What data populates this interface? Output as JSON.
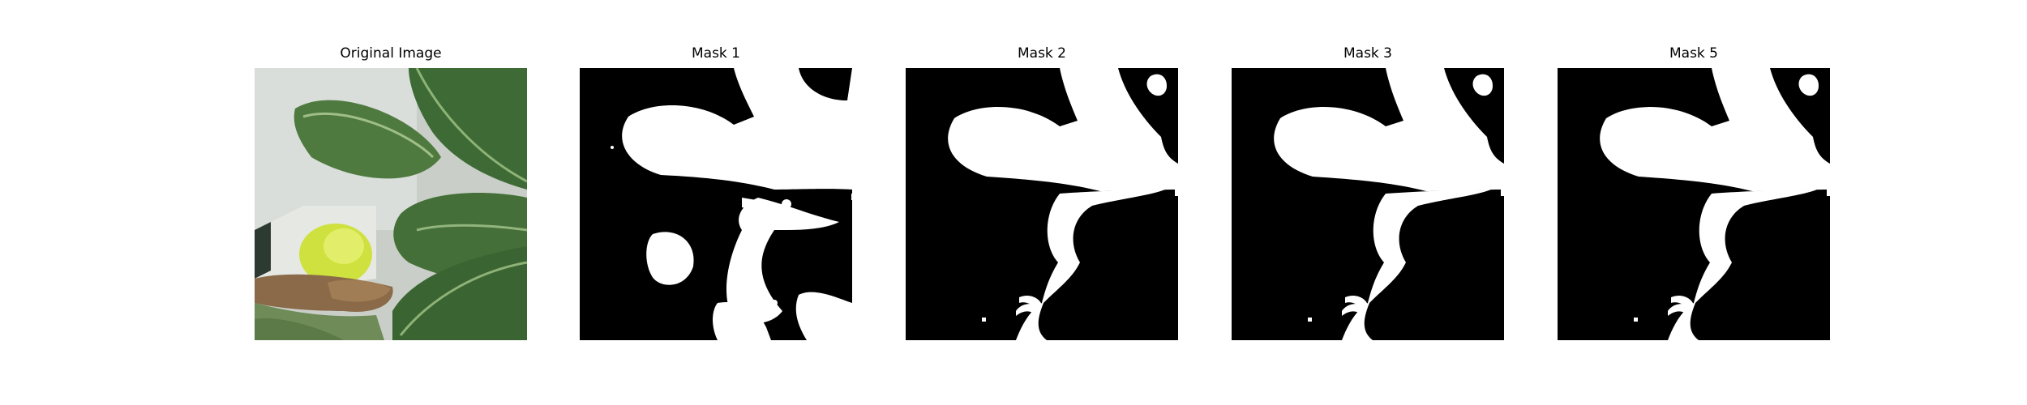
{
  "figure": {
    "panels": [
      {
        "title": "Original Image"
      },
      {
        "title": "Mask 1"
      },
      {
        "title": "Mask 2"
      },
      {
        "title": "Mask 3"
      },
      {
        "title": "Mask 5"
      }
    ]
  },
  "colors": {
    "background": "#ffffff",
    "mask_fg": "#ffffff",
    "mask_bg": "#000000",
    "leaf_dark": "#3f6a36",
    "leaf_light": "#6f9a55",
    "yellow": "#d6e64a",
    "brown": "#8a6a48",
    "wall": "#d8ddd9"
  }
}
